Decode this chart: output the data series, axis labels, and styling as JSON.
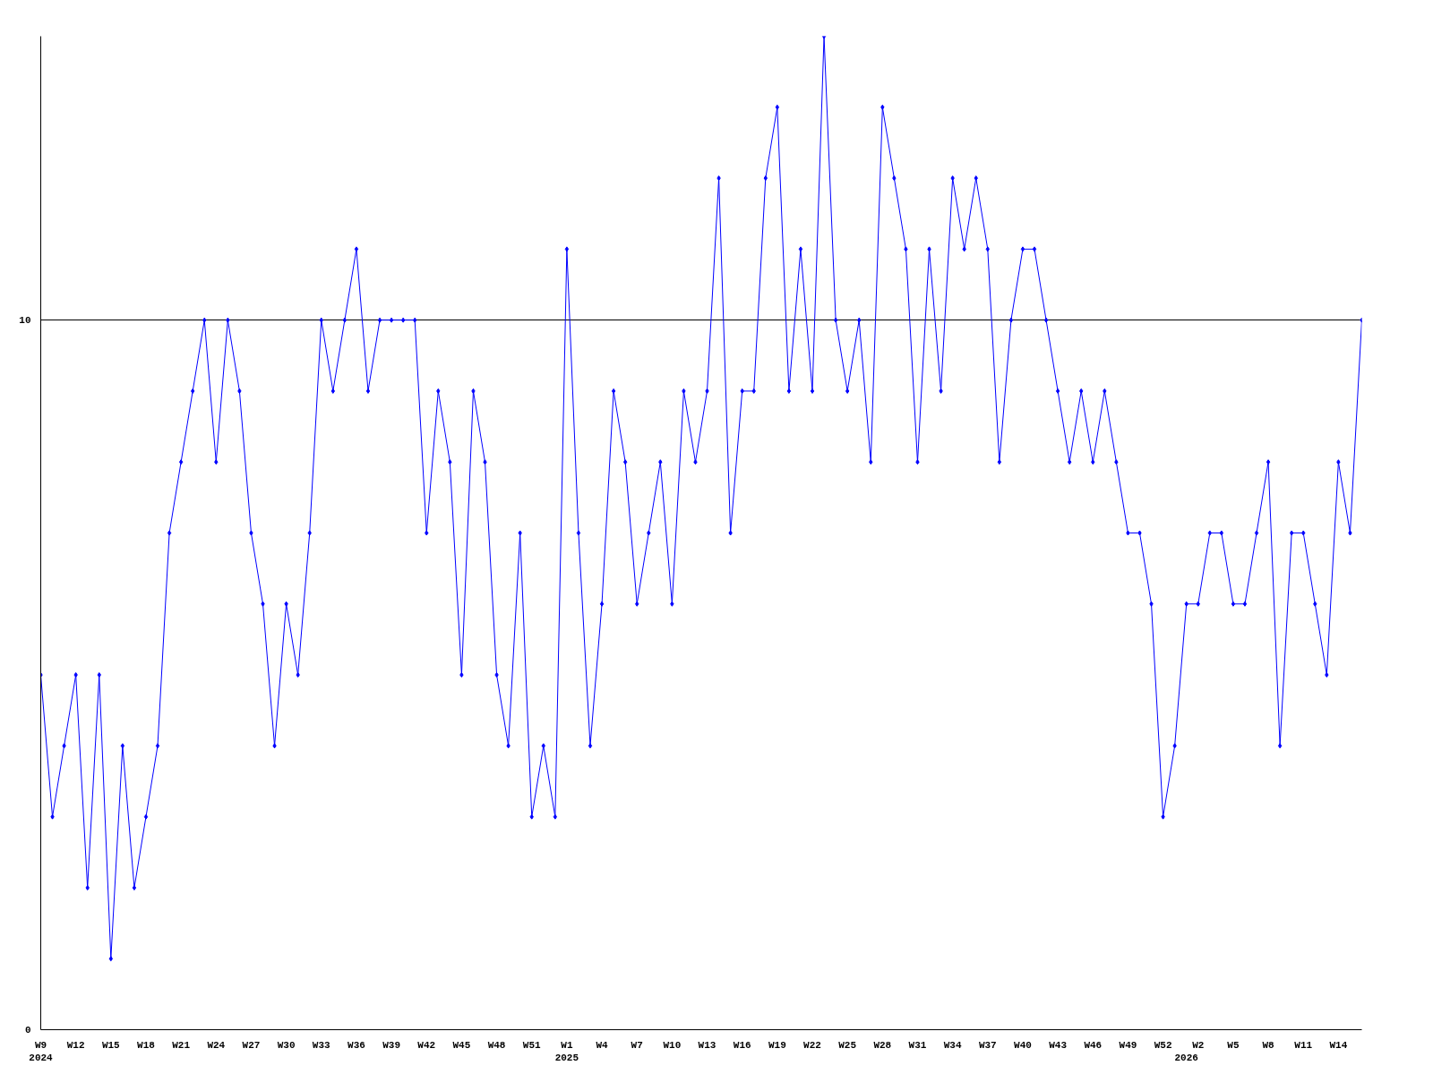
{
  "chart_data": {
    "type": "line",
    "categories": [
      "W9\n2024",
      null,
      null,
      "W12",
      null,
      null,
      "W15",
      null,
      null,
      "W18",
      null,
      null,
      "W21",
      null,
      null,
      "W24",
      null,
      null,
      "W27",
      null,
      null,
      "W30",
      null,
      null,
      "W33",
      null,
      null,
      "W36",
      null,
      null,
      "W39",
      null,
      null,
      "W42",
      null,
      null,
      "W45",
      null,
      null,
      "W48",
      null,
      null,
      "W51",
      null,
      null,
      "W1\n2025",
      null,
      null,
      "W4",
      null,
      null,
      "W7",
      null,
      null,
      "W10",
      null,
      null,
      "W13",
      null,
      null,
      "W16",
      null,
      null,
      "W19",
      null,
      null,
      "W22",
      null,
      null,
      "W25",
      null,
      null,
      "W28",
      null,
      null,
      "W31",
      null,
      null,
      "W34",
      null,
      null,
      "W37",
      null,
      null,
      "W40",
      null,
      null,
      "W43",
      null,
      null,
      "W46",
      null,
      null,
      "W49",
      null,
      null,
      "W52",
      null,
      "\n2026",
      "W2",
      null,
      null,
      "W5",
      null,
      null,
      "W8",
      null,
      null,
      "W11",
      null,
      null,
      "W14",
      null,
      null
    ],
    "series": [
      {
        "color": "#0000ff",
        "values": [
          5,
          3,
          4,
          5,
          2,
          5,
          1,
          4,
          2,
          3,
          4,
          7,
          8,
          9,
          10,
          8,
          10,
          9,
          7,
          6,
          4,
          6,
          5,
          7,
          10,
          9,
          10,
          11,
          9,
          10,
          10,
          10,
          10,
          7,
          9,
          8,
          5,
          9,
          8,
          5,
          4,
          7,
          3,
          4,
          3,
          11,
          7,
          4,
          6,
          9,
          8,
          6,
          7,
          8,
          6,
          9,
          8,
          9,
          12,
          7,
          9,
          9,
          12,
          13,
          9,
          11,
          9,
          14,
          10,
          9,
          10,
          8,
          13,
          12,
          11,
          8,
          11,
          9,
          12,
          11,
          12,
          11,
          8,
          10,
          11,
          11,
          10,
          9,
          8,
          9,
          8,
          9,
          8,
          7,
          7,
          6,
          3,
          4,
          6,
          6,
          7,
          7,
          6,
          6,
          7,
          8,
          4,
          7,
          7,
          6,
          5,
          8,
          7,
          10
        ]
      }
    ],
    "ylim": [
      0,
      14
    ],
    "yticks": [
      0,
      10
    ],
    "grid": "y",
    "marker": "diamond",
    "line_style": "solid"
  }
}
